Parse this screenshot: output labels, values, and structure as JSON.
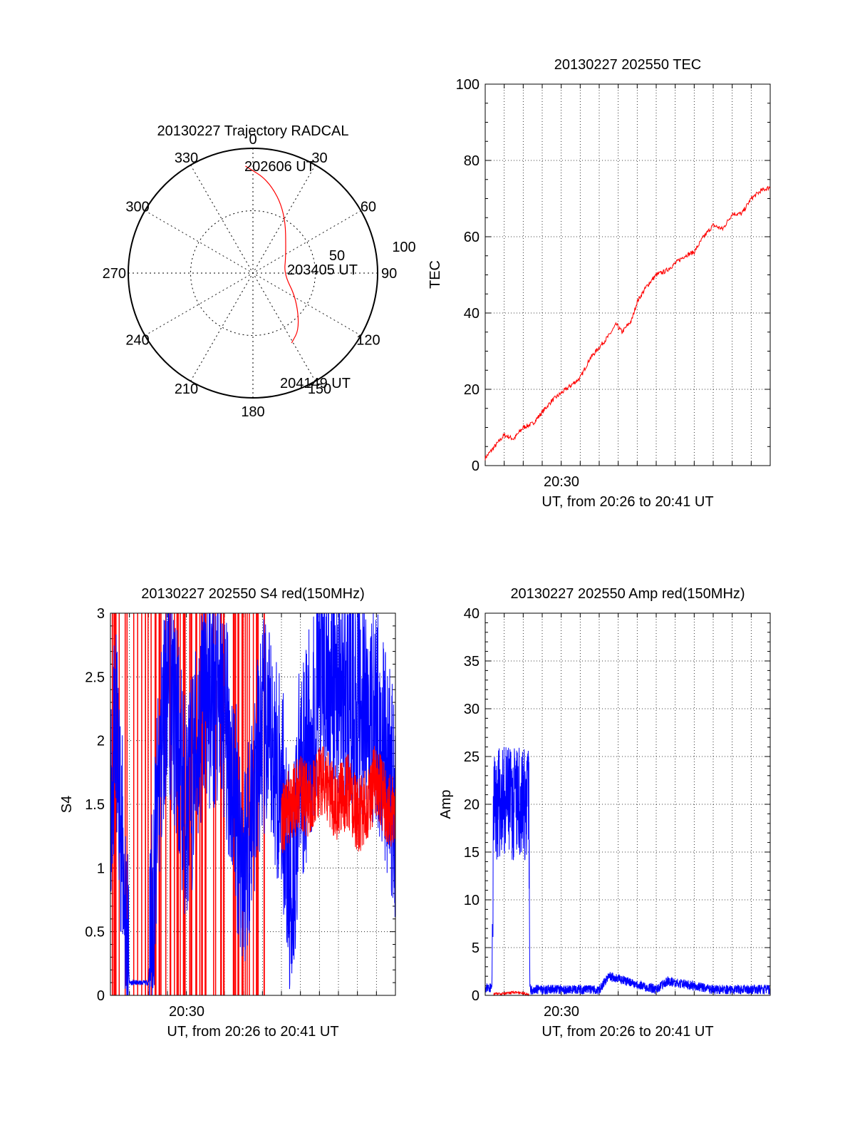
{
  "colors": {
    "red": "#ff0000",
    "blue": "#0000ff",
    "black": "#000000"
  },
  "chart_data": [
    {
      "type": "polar",
      "title": "20130227 Trajectory RADCAL",
      "angle_labels": [
        "0",
        "30",
        "60",
        "90",
        "120",
        "150",
        "180",
        "210",
        "240",
        "270",
        "300",
        "330"
      ],
      "radial_labels": [
        "50",
        "100"
      ],
      "rlim": [
        0,
        100
      ],
      "trajectory": [
        {
          "az": 356,
          "r": 86
        },
        {
          "az": 10,
          "r": 75
        },
        {
          "az": 28,
          "r": 55
        },
        {
          "az": 62,
          "r": 30
        },
        {
          "az": 92,
          "r": 25
        },
        {
          "az": 120,
          "r": 40
        },
        {
          "az": 140,
          "r": 58
        },
        {
          "az": 151,
          "r": 64
        }
      ],
      "annotations": [
        {
          "text": "202606 UT",
          "az": 356,
          "r": 86
        },
        {
          "text": "203405 UT",
          "az": 92,
          "r": 25
        },
        {
          "text": "204149 UT",
          "az": 151,
          "r": 64
        }
      ],
      "series_color": "red"
    },
    {
      "type": "line",
      "title": "20130227 202550 TEC",
      "ylabel": "TEC",
      "xlabel": "UT, from 20:26 to 20:41 UT",
      "ylim": [
        0,
        100
      ],
      "yticks": [
        "0",
        "20",
        "40",
        "60",
        "80",
        "100"
      ],
      "xlim_min": [
        0,
        15
      ],
      "xtick_labels": [
        {
          "label": "20:30",
          "t": 4
        }
      ],
      "grid": true,
      "x_min": [
        0,
        0.5,
        1,
        1.5,
        2,
        2.5,
        3,
        3.5,
        4,
        4.5,
        5,
        5.5,
        6,
        6.5,
        6.9,
        7.2,
        7.7,
        8,
        8.5,
        9,
        9.5,
        10,
        10.5,
        11,
        11.5,
        12,
        12.5,
        13,
        13.5,
        14,
        14.5,
        15
      ],
      "y": [
        2,
        5,
        8,
        7,
        10,
        11,
        14,
        17,
        19,
        21,
        23,
        28,
        31,
        34,
        37,
        35,
        38,
        43,
        47,
        50,
        51,
        53,
        55,
        56,
        60,
        63,
        62,
        66,
        66,
        70,
        72,
        73
      ],
      "series_color": "red"
    },
    {
      "type": "line",
      "title": "20130227 202550 S4 red(150MHz)",
      "ylabel": "S4",
      "xlabel": "UT, from 20:26 to 20:41 UT",
      "ylim": [
        0,
        3
      ],
      "yticks": [
        "0",
        "0.5",
        "1",
        "1.5",
        "2",
        "2.5",
        "3"
      ],
      "xlim_min": [
        0,
        15
      ],
      "xtick_labels": [
        {
          "label": "20:30",
          "t": 4
        }
      ],
      "grid": true,
      "series": [
        {
          "color": "blue",
          "x_min": [
            0,
            0.3,
            0.5,
            1,
            1.5,
            2,
            2.5,
            3,
            3.5,
            4,
            5,
            6,
            7,
            8,
            9,
            9.5,
            10,
            10.5,
            11,
            12,
            13,
            14,
            15
          ],
          "y": [
            1.6,
            2.0,
            1.5,
            0.1,
            0.1,
            0.1,
            1.5,
            2.6,
            2.0,
            1.4,
            2.4,
            2.2,
            1.0,
            2.1,
            1.7,
            0.7,
            1.8,
            2.0,
            2.5,
            2.4,
            2.3,
            2.2,
            1.5
          ]
        },
        {
          "color": "red",
          "x_min": [
            9,
            9.5,
            10,
            10.5,
            11,
            11.5,
            12,
            12.5,
            13,
            13.5,
            14,
            14.5,
            15
          ],
          "y": [
            1.4,
            1.5,
            1.6,
            1.5,
            1.7,
            1.6,
            1.5,
            1.6,
            1.4,
            1.5,
            1.7,
            1.5,
            1.4
          ]
        }
      ]
    },
    {
      "type": "line",
      "title": "20130227 202550 Amp red(150MHz)",
      "ylabel": "Amp",
      "xlabel": "UT, from 20:26 to 20:41 UT",
      "ylim": [
        0,
        40
      ],
      "yticks": [
        "0",
        "5",
        "10",
        "15",
        "20",
        "25",
        "30",
        "35",
        "40"
      ],
      "xlim_min": [
        0,
        15
      ],
      "xtick_labels": [
        {
          "label": "20:30",
          "t": 4
        }
      ],
      "grid": true,
      "series": [
        {
          "color": "blue",
          "x_min": [
            0,
            0.35,
            0.4,
            0.45,
            2.3,
            2.35,
            2.4,
            5,
            6,
            6.5,
            9,
            9.6,
            12,
            15
          ],
          "y": [
            0.8,
            0.8,
            10,
            20,
            20,
            1.0,
            0.6,
            0.6,
            0.6,
            2.0,
            0.6,
            1.5,
            0.6,
            0.6
          ]
        },
        {
          "color": "red",
          "x_min": [
            0.45,
            1.0,
            1.5,
            2.0,
            2.3
          ],
          "y": [
            0.1,
            0.2,
            0.3,
            0.2,
            0.1
          ]
        }
      ]
    }
  ]
}
